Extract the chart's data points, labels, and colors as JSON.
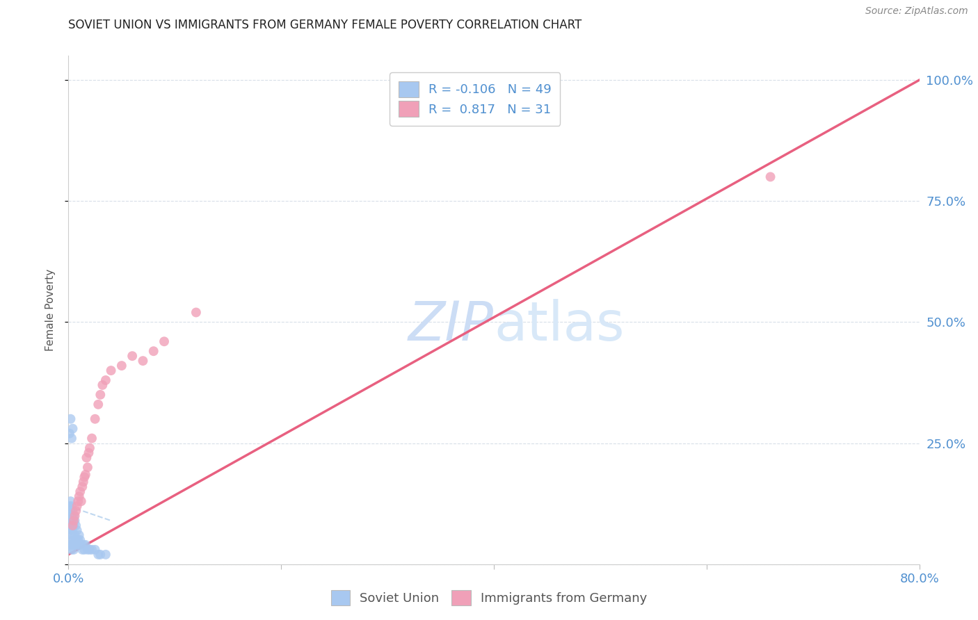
{
  "title": "SOVIET UNION VS IMMIGRANTS FROM GERMANY FEMALE POVERTY CORRELATION CHART",
  "source": "Source: ZipAtlas.com",
  "xlabel_blue": "Soviet Union",
  "xlabel_pink": "Immigrants from Germany",
  "ylabel": "Female Poverty",
  "xmin": 0.0,
  "xmax": 0.8,
  "ymin": 0.0,
  "ymax": 1.05,
  "yticks": [
    0.0,
    0.25,
    0.5,
    0.75,
    1.0
  ],
  "ytick_labels_right": [
    "",
    "25.0%",
    "50.0%",
    "75.0%",
    "100.0%"
  ],
  "xticks": [
    0.0,
    0.2,
    0.4,
    0.6,
    0.8
  ],
  "xtick_labels": [
    "0.0%",
    "",
    "",
    "",
    "80.0%"
  ],
  "blue_color": "#a8c8f0",
  "pink_color": "#f0a0b8",
  "blue_line_color": "#c0d8f0",
  "pink_line_color": "#e86080",
  "watermark_zip_color": "#ccddf5",
  "watermark_atlas_color": "#d8e8f8",
  "grid_color": "#d8dfe8",
  "legend_label_blue": "R = -0.106   N = 49",
  "legend_label_pink": "R =  0.817   N = 31",
  "tick_label_color": "#5090d0",
  "blue_scatter_x": [
    0.001,
    0.001,
    0.001,
    0.001,
    0.002,
    0.002,
    0.002,
    0.002,
    0.002,
    0.003,
    0.003,
    0.003,
    0.003,
    0.003,
    0.004,
    0.004,
    0.004,
    0.004,
    0.005,
    0.005,
    0.005,
    0.005,
    0.006,
    0.006,
    0.006,
    0.007,
    0.007,
    0.008,
    0.008,
    0.009,
    0.01,
    0.01,
    0.011,
    0.012,
    0.013,
    0.014,
    0.015,
    0.016,
    0.018,
    0.02,
    0.022,
    0.025,
    0.028,
    0.03,
    0.035,
    0.001,
    0.002,
    0.003,
    0.004
  ],
  "blue_scatter_y": [
    0.05,
    0.08,
    0.1,
    0.12,
    0.04,
    0.07,
    0.09,
    0.11,
    0.13,
    0.03,
    0.06,
    0.08,
    0.1,
    0.12,
    0.04,
    0.07,
    0.09,
    0.11,
    0.03,
    0.05,
    0.08,
    0.1,
    0.04,
    0.06,
    0.09,
    0.05,
    0.08,
    0.04,
    0.07,
    0.05,
    0.04,
    0.06,
    0.05,
    0.04,
    0.03,
    0.04,
    0.03,
    0.04,
    0.03,
    0.03,
    0.03,
    0.03,
    0.02,
    0.02,
    0.02,
    0.27,
    0.3,
    0.26,
    0.28
  ],
  "pink_scatter_x": [
    0.004,
    0.005,
    0.006,
    0.007,
    0.008,
    0.009,
    0.01,
    0.011,
    0.012,
    0.013,
    0.014,
    0.015,
    0.016,
    0.017,
    0.018,
    0.019,
    0.02,
    0.022,
    0.025,
    0.028,
    0.03,
    0.032,
    0.035,
    0.04,
    0.05,
    0.06,
    0.07,
    0.08,
    0.09,
    0.12,
    0.66
  ],
  "pink_scatter_y": [
    0.08,
    0.09,
    0.1,
    0.11,
    0.12,
    0.13,
    0.14,
    0.15,
    0.13,
    0.16,
    0.17,
    0.18,
    0.185,
    0.22,
    0.2,
    0.23,
    0.24,
    0.26,
    0.3,
    0.33,
    0.35,
    0.37,
    0.38,
    0.4,
    0.41,
    0.43,
    0.42,
    0.44,
    0.46,
    0.52,
    0.8
  ],
  "blue_line_x": [
    0.0,
    0.04
  ],
  "blue_line_y": [
    0.12,
    0.09
  ],
  "pink_line_x": [
    0.0,
    0.8
  ],
  "pink_line_y": [
    0.02,
    1.0
  ]
}
